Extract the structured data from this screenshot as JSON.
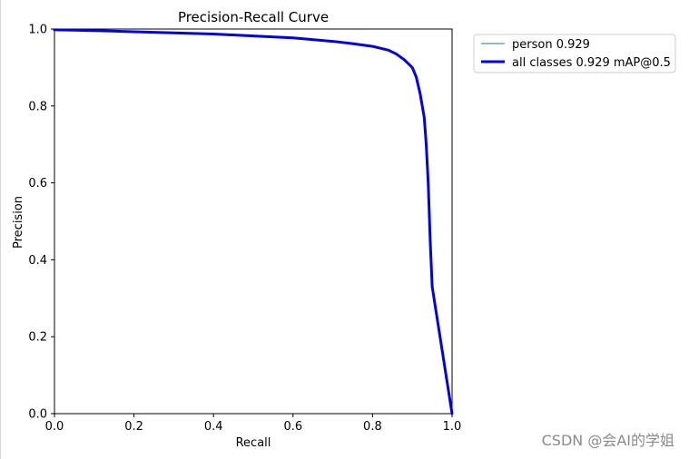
{
  "chart_data": {
    "type": "line",
    "title": "Precision-Recall Curve",
    "xlabel": "Recall",
    "ylabel": "Precision",
    "xlim": [
      0.0,
      1.0
    ],
    "ylim": [
      0.0,
      1.0
    ],
    "xticks": [
      "0.0",
      "0.2",
      "0.4",
      "0.6",
      "0.8",
      "1.0"
    ],
    "yticks": [
      "0.0",
      "0.2",
      "0.4",
      "0.6",
      "0.8",
      "1.0"
    ],
    "grid": false,
    "legend_placement": "outside-right-top",
    "series": [
      {
        "name": "person 0.929",
        "color": "#1f77b4",
        "x": [
          0.0,
          0.05,
          0.1,
          0.2,
          0.3,
          0.4,
          0.5,
          0.6,
          0.7,
          0.75,
          0.8,
          0.84,
          0.86,
          0.88,
          0.9,
          0.91,
          0.92,
          0.93,
          0.935,
          0.94,
          0.945,
          0.95,
          1.0
        ],
        "y": [
          0.998,
          0.997,
          0.996,
          0.993,
          0.99,
          0.987,
          0.982,
          0.977,
          0.968,
          0.962,
          0.955,
          0.945,
          0.935,
          0.92,
          0.9,
          0.875,
          0.83,
          0.77,
          0.7,
          0.6,
          0.45,
          0.33,
          0.0
        ]
      },
      {
        "name": "all classes 0.929 mAP@0.5",
        "color": "#0000ee",
        "x": [
          0.0,
          0.05,
          0.1,
          0.2,
          0.3,
          0.4,
          0.5,
          0.6,
          0.7,
          0.75,
          0.8,
          0.84,
          0.86,
          0.88,
          0.9,
          0.91,
          0.92,
          0.93,
          0.935,
          0.94,
          0.945,
          0.95,
          1.0
        ],
        "y": [
          0.998,
          0.997,
          0.996,
          0.993,
          0.99,
          0.987,
          0.982,
          0.977,
          0.968,
          0.962,
          0.955,
          0.945,
          0.935,
          0.92,
          0.9,
          0.875,
          0.83,
          0.77,
          0.7,
          0.6,
          0.45,
          0.33,
          0.0
        ]
      }
    ]
  },
  "watermark": "CSDN @会AI的学姐"
}
